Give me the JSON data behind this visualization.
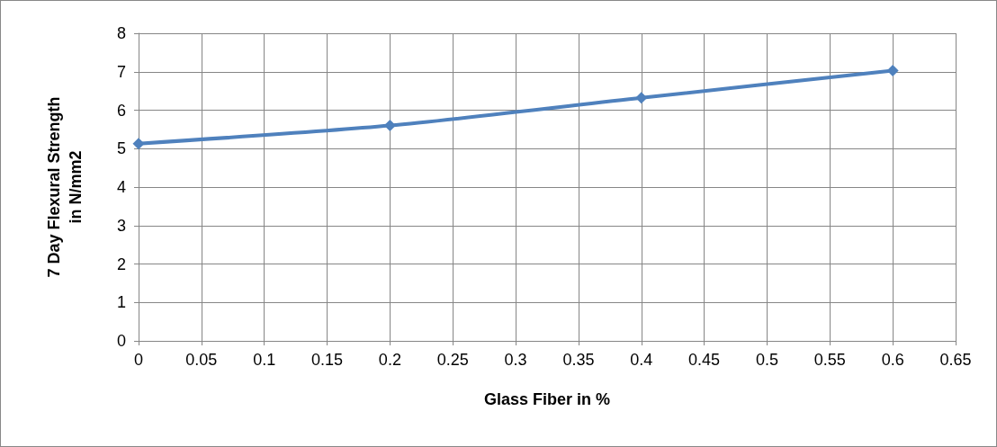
{
  "chart_data": {
    "type": "line",
    "xlabel": "Glass Fiber in %",
    "ylabel": "7 Day Flexural Strength\nin N/mm2",
    "x": [
      0,
      0.2,
      0.4,
      0.6
    ],
    "series": [
      {
        "color": "#4f81bd",
        "values": [
          5.13,
          5.6,
          6.32,
          7.03
        ]
      }
    ],
    "xlim": [
      0,
      0.65
    ],
    "xticks": [
      0,
      0.05,
      0.1,
      0.15,
      0.2,
      0.25,
      0.3,
      0.35,
      0.4,
      0.45,
      0.5,
      0.55,
      0.6,
      0.65
    ],
    "ylim": [
      0,
      8
    ],
    "yticks": [
      0,
      1,
      2,
      3,
      4,
      5,
      6,
      7,
      8
    ],
    "grid": true,
    "marker": "diamond",
    "line_style": "solid"
  }
}
